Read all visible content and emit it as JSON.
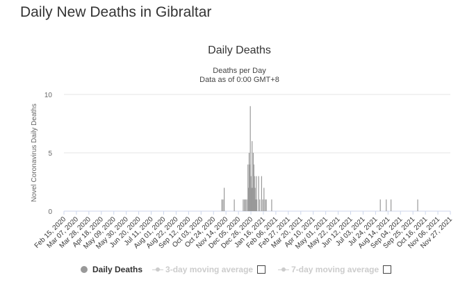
{
  "page": {
    "title": "Daily New Deaths in Gibraltar"
  },
  "chart_data": {
    "type": "bar",
    "title": "Daily Deaths",
    "subtitle_lines": [
      "Deaths per Day",
      "Data as of 0:00 GMT+8"
    ],
    "ylabel": "Novel Coronavirus Daily Deaths",
    "xlabel": "",
    "ylim": [
      0,
      10
    ],
    "yticks": [
      0,
      5,
      10
    ],
    "grid": true,
    "start_date": "2020-02-15",
    "end_date": "2021-11-27",
    "xtick_labels": [
      "Feb 15, 2020",
      "Mar 07, 2020",
      "Mar 28, 2020",
      "Apr 18, 2020",
      "May 09, 2020",
      "May 30, 2020",
      "Jun 20, 2020",
      "Jul 11, 2020",
      "Aug 01, 2020",
      "Aug 22, 2020",
      "Sep 12, 2020",
      "Oct 03, 2020",
      "Oct 24, 2020",
      "Nov 14, 2020",
      "Dec 05, 2020",
      "Dec 26, 2020",
      "Jan 16, 2021",
      "Feb 06, 2021",
      "Feb 27, 2021",
      "Mar 20, 2021",
      "Apr 10, 2021",
      "May 01, 2021",
      "May 22, 2021",
      "Jun 12, 2021",
      "Jul 03, 2021",
      "Jul 24, 2021",
      "Aug 14, 2021",
      "Sep 04, 2021",
      "Sep 25, 2021",
      "Oct 16, 2021",
      "Nov 06, 2021",
      "Nov 27, 2021"
    ],
    "series": [
      {
        "name": "Daily Deaths",
        "color": "#999999",
        "points": [
          {
            "date": "2020-11-07",
            "value": 1
          },
          {
            "date": "2020-11-09",
            "value": 1
          },
          {
            "date": "2020-11-11",
            "value": 2
          },
          {
            "date": "2020-11-28",
            "value": 1
          },
          {
            "date": "2020-12-13",
            "value": 1
          },
          {
            "date": "2020-12-15",
            "value": 1
          },
          {
            "date": "2020-12-17",
            "value": 1
          },
          {
            "date": "2020-12-19",
            "value": 1
          },
          {
            "date": "2020-12-21",
            "value": 4
          },
          {
            "date": "2020-12-22",
            "value": 2
          },
          {
            "date": "2020-12-23",
            "value": 5
          },
          {
            "date": "2020-12-24",
            "value": 4
          },
          {
            "date": "2020-12-25",
            "value": 9
          },
          {
            "date": "2020-12-26",
            "value": 3
          },
          {
            "date": "2020-12-27",
            "value": 2
          },
          {
            "date": "2020-12-28",
            "value": 6
          },
          {
            "date": "2020-12-29",
            "value": 2
          },
          {
            "date": "2020-12-30",
            "value": 5
          },
          {
            "date": "2020-12-31",
            "value": 4
          },
          {
            "date": "2021-01-01",
            "value": 3
          },
          {
            "date": "2021-01-02",
            "value": 2
          },
          {
            "date": "2021-01-03",
            "value": 1
          },
          {
            "date": "2021-01-04",
            "value": 3
          },
          {
            "date": "2021-01-05",
            "value": 1
          },
          {
            "date": "2021-01-08",
            "value": 3
          },
          {
            "date": "2021-01-10",
            "value": 1
          },
          {
            "date": "2021-01-13",
            "value": 3
          },
          {
            "date": "2021-01-15",
            "value": 1
          },
          {
            "date": "2021-01-17",
            "value": 2
          },
          {
            "date": "2021-01-19",
            "value": 1
          },
          {
            "date": "2021-01-21",
            "value": 1
          },
          {
            "date": "2021-01-30",
            "value": 1
          },
          {
            "date": "2021-08-01",
            "value": 1
          },
          {
            "date": "2021-08-11",
            "value": 1
          },
          {
            "date": "2021-08-19",
            "value": 1
          },
          {
            "date": "2021-10-03",
            "value": 1
          }
        ]
      }
    ],
    "legend": {
      "position": "bottom",
      "items": [
        {
          "label": "Daily Deaths",
          "active": true
        },
        {
          "label": "3-day moving average",
          "active": false
        },
        {
          "label": "7-day moving average",
          "active": false
        }
      ]
    }
  }
}
